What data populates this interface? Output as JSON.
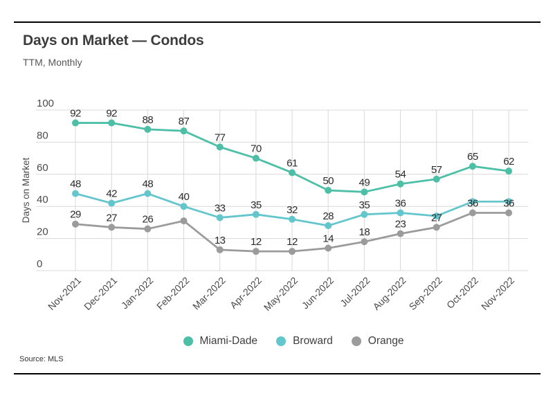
{
  "header": {
    "title": "Days on Market — Condos",
    "subtitle": "TTM, Monthly"
  },
  "footer": {
    "source": "Source: MLS"
  },
  "colors": {
    "miami_dade": "#4DBFA7",
    "broward": "#63C6CD",
    "orange": "#9B9B9B",
    "grid": "#D8D8D8",
    "value_label": "#2b2b2b",
    "axis_text": "#4a4a4a",
    "rule": "#000000"
  },
  "chart_data": {
    "type": "line",
    "title": "Days on Market — Condos",
    "subtitle": "TTM, Monthly",
    "xlabel": "",
    "ylabel": "Days on Market",
    "ylim": [
      0,
      100
    ],
    "yticks": [
      0,
      20,
      40,
      60,
      80,
      100
    ],
    "grid": true,
    "legend_position": "bottom",
    "categories": [
      "Nov-2021",
      "Dec-2021",
      "Jan-2022",
      "Feb-2022",
      "Mar-2022",
      "Apr-2022",
      "May-2022",
      "Jun-2022",
      "Jul-2022",
      "Aug-2022",
      "Sep-2022",
      "Oct-2022",
      "Nov-2022"
    ],
    "series": [
      {
        "name": "Miami-Dade",
        "color": "#4DBFA7",
        "values": [
          92,
          92,
          88,
          87,
          77,
          70,
          61,
          50,
          49,
          54,
          57,
          65,
          62
        ],
        "labels": [
          "92",
          "92",
          "88",
          "87",
          "77",
          "70",
          "61",
          "50",
          "49",
          "54",
          "57",
          "65",
          "62"
        ]
      },
      {
        "name": "Broward",
        "color": "#63C6CD",
        "values": [
          48,
          42,
          48,
          40,
          33,
          35,
          32,
          28,
          35,
          36,
          34,
          43,
          43
        ],
        "labels": [
          "48",
          "42",
          "48",
          "40",
          "33",
          "35",
          "32",
          "28",
          "35",
          "36",
          "",
          "",
          ""
        ]
      },
      {
        "name": "Orange",
        "color": "#9B9B9B",
        "values": [
          29,
          27,
          26,
          31,
          13,
          12,
          12,
          14,
          18,
          23,
          27,
          36,
          36
        ],
        "labels": [
          "29",
          "27",
          "26",
          "",
          "13",
          "12",
          "12",
          "14",
          "18",
          "23",
          "27",
          "36",
          "36"
        ]
      }
    ]
  }
}
